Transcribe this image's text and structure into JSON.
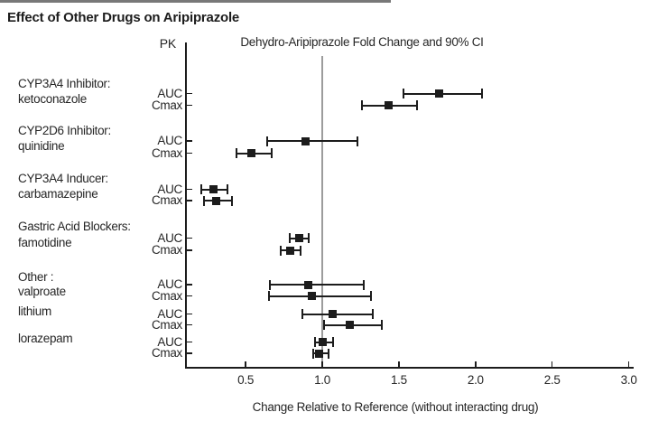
{
  "page": {
    "title": "Effect of Other Drugs on Aripiprazole"
  },
  "chart_data": {
    "type": "scatter",
    "variant": "forest-plot",
    "title": "Dehydro-Aripiprazole Fold Change and 90% CI",
    "pk_column_header": "PK",
    "xlabel": "Change Relative to Reference (without interacting drug)",
    "xlim": [
      0.11,
      3.03
    ],
    "xticks": [
      0.5,
      1.0,
      1.5,
      2.0,
      2.5,
      3.0
    ],
    "reference_line": 1.0,
    "legend_position": "none",
    "grid": "off",
    "marker_shape": "filled-square",
    "marker_color": "#1c1c1c",
    "reference_line_color": "#9c9c9c",
    "groups": [
      {
        "label_lines": [
          "CYP3A4 Inhibitor:",
          "ketoconazole"
        ],
        "rows": [
          {
            "pk": "AUC",
            "estimate": 1.76,
            "ci_low": 1.53,
            "ci_high": 2.04
          },
          {
            "pk": "Cmax",
            "estimate": 1.43,
            "ci_low": 1.26,
            "ci_high": 1.62
          }
        ]
      },
      {
        "label_lines": [
          "CYP2D6 Inhibitor:",
          "quinidine"
        ],
        "rows": [
          {
            "pk": "AUC",
            "estimate": 0.89,
            "ci_low": 0.64,
            "ci_high": 1.23
          },
          {
            "pk": "Cmax",
            "estimate": 0.54,
            "ci_low": 0.44,
            "ci_high": 0.67
          }
        ]
      },
      {
        "label_lines": [
          "CYP3A4 Inducer:",
          "carbamazepine"
        ],
        "rows": [
          {
            "pk": "AUC",
            "estimate": 0.29,
            "ci_low": 0.21,
            "ci_high": 0.38
          },
          {
            "pk": "Cmax",
            "estimate": 0.31,
            "ci_low": 0.23,
            "ci_high": 0.41
          }
        ]
      },
      {
        "label_lines": [
          "Gastric Acid Blockers:",
          "famotidine"
        ],
        "rows": [
          {
            "pk": "AUC",
            "estimate": 0.85,
            "ci_low": 0.79,
            "ci_high": 0.91
          },
          {
            "pk": "Cmax",
            "estimate": 0.79,
            "ci_low": 0.73,
            "ci_high": 0.86
          }
        ]
      },
      {
        "label_lines": [
          "Other :",
          "valproate"
        ],
        "rows": [
          {
            "pk": "AUC",
            "estimate": 0.91,
            "ci_low": 0.66,
            "ci_high": 1.27
          },
          {
            "pk": "Cmax",
            "estimate": 0.93,
            "ci_low": 0.65,
            "ci_high": 1.32
          }
        ]
      },
      {
        "label_lines": [
          "lithium"
        ],
        "rows": [
          {
            "pk": "AUC",
            "estimate": 1.07,
            "ci_low": 0.87,
            "ci_high": 1.33
          },
          {
            "pk": "Cmax",
            "estimate": 1.18,
            "ci_low": 1.01,
            "ci_high": 1.39
          }
        ]
      },
      {
        "label_lines": [
          "lorazepam"
        ],
        "rows": [
          {
            "pk": "AUC",
            "estimate": 1.0,
            "ci_low": 0.95,
            "ci_high": 1.07
          },
          {
            "pk": "Cmax",
            "estimate": 0.98,
            "ci_low": 0.94,
            "ci_high": 1.04
          }
        ]
      }
    ]
  }
}
